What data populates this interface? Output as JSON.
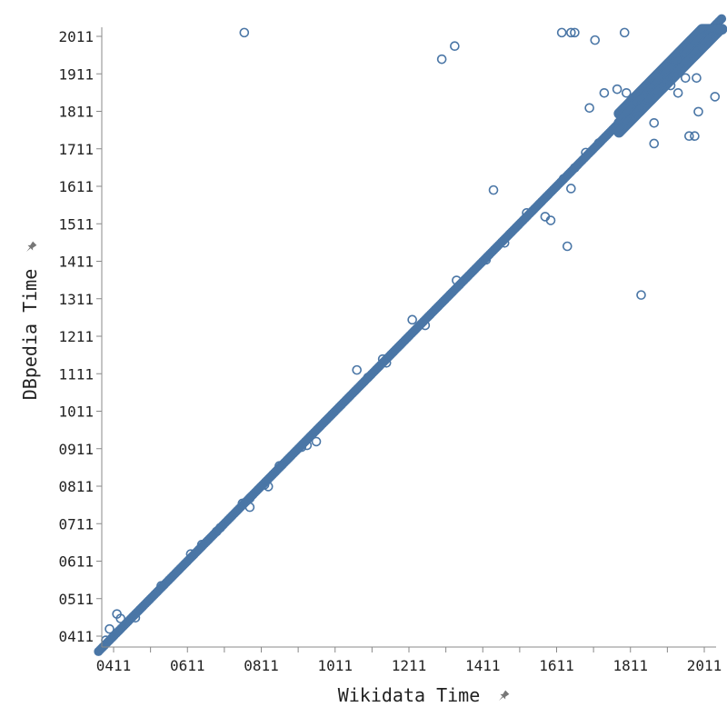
{
  "chart_data": {
    "type": "scatter",
    "xlabel": "Wikidata Time",
    "ylabel": "DBpedia Time",
    "xlim": [
      350,
      2060
    ],
    "ylim": [
      380,
      2030
    ],
    "x_ticks": [
      {
        "v": 411,
        "label": "0411"
      },
      {
        "v": 611,
        "label": "0611"
      },
      {
        "v": 811,
        "label": "0811"
      },
      {
        "v": 1011,
        "label": "1011"
      },
      {
        "v": 1211,
        "label": "1211"
      },
      {
        "v": 1411,
        "label": "1411"
      },
      {
        "v": 1611,
        "label": "1611"
      },
      {
        "v": 1811,
        "label": "1811"
      },
      {
        "v": 2011,
        "label": "2011"
      }
    ],
    "x_minor_ticks": [
      511,
      711,
      911,
      1111,
      1311,
      1511,
      1711,
      1911
    ],
    "y_ticks": [
      {
        "v": 411,
        "label": "0411"
      },
      {
        "v": 511,
        "label": "0511"
      },
      {
        "v": 611,
        "label": "0611"
      },
      {
        "v": 711,
        "label": "0711"
      },
      {
        "v": 811,
        "label": "0811"
      },
      {
        "v": 911,
        "label": "0911"
      },
      {
        "v": 1011,
        "label": "1011"
      },
      {
        "v": 1111,
        "label": "1111"
      },
      {
        "v": 1211,
        "label": "1211"
      },
      {
        "v": 1311,
        "label": "1311"
      },
      {
        "v": 1411,
        "label": "1411"
      },
      {
        "v": 1511,
        "label": "1511"
      },
      {
        "v": 1611,
        "label": "1611"
      },
      {
        "v": 1711,
        "label": "1711"
      },
      {
        "v": 1811,
        "label": "1811"
      },
      {
        "v": 1911,
        "label": "1911"
      },
      {
        "v": 2011,
        "label": "2011"
      }
    ],
    "point_color": "#4a76a6",
    "grid": false,
    "diagonal_dense_range": [
      370,
      2060
    ],
    "x": [
      765,
      1650,
      1300,
      1335,
      1625,
      1660,
      1795,
      1715,
      1875,
      1440,
      1640,
      1840,
      1630,
      1595,
      1660,
      1725,
      1875,
      1800,
      1825,
      1920,
      1990,
      1690,
      1580,
      1530,
      1470,
      1420,
      1340,
      1255,
      1220,
      1150,
      1140,
      1100,
      1070,
      935,
      920,
      960,
      860,
      830,
      820,
      780,
      780,
      760,
      700,
      690,
      650,
      620,
      540,
      470,
      430,
      420,
      400,
      390,
      1970,
      1985,
      1940,
      1995,
      2040,
      1960,
      1905,
      1935,
      1775,
      1740,
      1700,
      1650
    ],
    "y": [
      2021,
      2021,
      1950,
      1985,
      2021,
      2021,
      2021,
      2001,
      1780,
      1601,
      1451,
      1321,
      1631,
      1520,
      1660,
      1726,
      1725,
      1860,
      1800,
      1880,
      1900,
      1701,
      1530,
      1540,
      1460,
      1415,
      1360,
      1240,
      1255,
      1140,
      1150,
      1101,
      1121,
      920,
      915,
      930,
      865,
      810,
      815,
      755,
      779,
      765,
      700,
      690,
      655,
      630,
      545,
      460,
      458,
      470,
      430,
      400,
      1745,
      1745,
      1860,
      1810,
      1850,
      1900,
      1900,
      1950,
      1870,
      1860,
      1820,
      1605
    ]
  }
}
